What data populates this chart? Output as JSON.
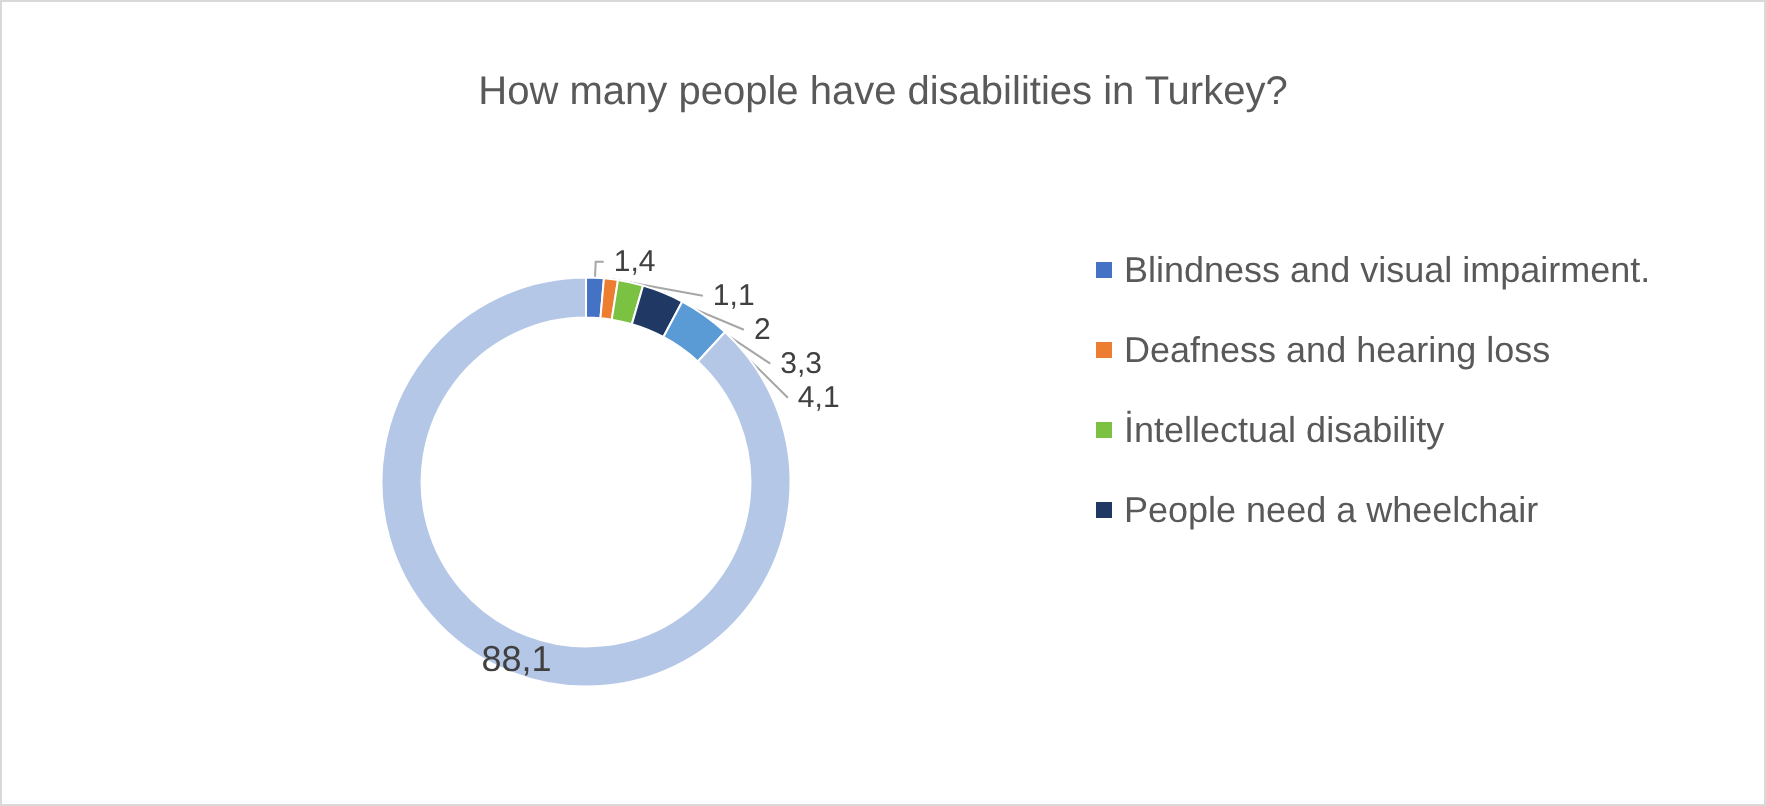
{
  "chart_data": {
    "type": "donut",
    "title": "How many people have disabilities in Turkey?",
    "categories": [
      "Blindness and visual impairment.",
      "Deafness and hearing loss",
      "İntellectual disability",
      "People need a wheelchair",
      null,
      null
    ],
    "values": [
      1.4,
      1.1,
      2,
      3.3,
      4.1,
      88.1
    ],
    "colors": [
      "#4472c4",
      "#ed7d31",
      "#7cc242",
      "#1f3864",
      "#5b9bd5",
      "#b4c7e7"
    ],
    "value_labels": [
      "1,4",
      "1,1",
      "2",
      "3,3",
      "4,1",
      "88,1"
    ],
    "legend": "right"
  }
}
